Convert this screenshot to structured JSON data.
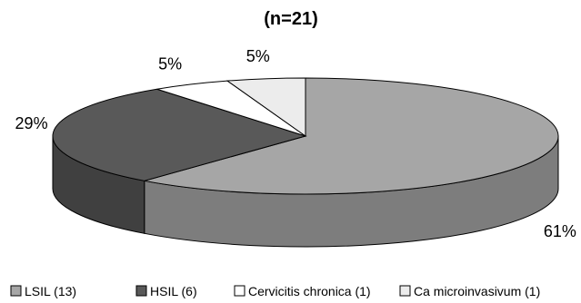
{
  "chart_data": {
    "type": "pie",
    "title": "(n=21)",
    "categories": [
      "LSIL (13)",
      "HSIL (6)",
      "Cervicitis chronica (1)",
      "Ca microinvasivum (1)"
    ],
    "values": [
      61,
      29,
      5,
      5
    ],
    "data_labels": [
      "61%",
      "29%",
      "5%",
      "5%"
    ],
    "three_d": true,
    "legend_position": "bottom",
    "colors": {
      "top": [
        "#a6a6a6",
        "#595959",
        "#ffffff",
        "#ececec"
      ],
      "side": [
        "#7d7d7d",
        "#404040",
        "#d0d0d0",
        "#c8c8c8"
      ],
      "legend": [
        "#a6a6a6",
        "#595959",
        "#ffffff",
        "#ececec"
      ]
    }
  }
}
